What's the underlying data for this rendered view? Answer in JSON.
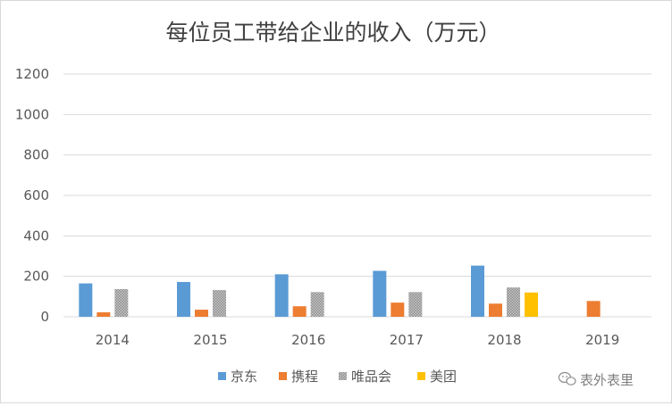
{
  "chart_data": {
    "type": "bar",
    "title": "每位员工带给企业的收入（万元）",
    "xlabel": "",
    "ylabel": "",
    "categories": [
      "2014",
      "2015",
      "2016",
      "2017",
      "2018",
      "2019"
    ],
    "yticks": [
      "0",
      "200",
      "400",
      "600",
      "800",
      "1000",
      "1200"
    ],
    "ylim": [
      0,
      1200
    ],
    "grid": true,
    "legend_position": "bottom",
    "series": [
      {
        "name": "京东",
        "color": "#5b9bd5",
        "values": [
          165,
          172,
          210,
          227,
          253,
          null
        ]
      },
      {
        "name": "携程",
        "color": "#ed7d31",
        "values": [
          22,
          35,
          52,
          70,
          65,
          78
        ]
      },
      {
        "name": "唯品会",
        "color": "#a5a5a5",
        "pattern": true,
        "values": [
          137,
          132,
          122,
          122,
          145,
          null
        ]
      },
      {
        "name": "美团",
        "color": "#ffc000",
        "values": [
          null,
          null,
          null,
          null,
          120,
          null
        ]
      }
    ]
  },
  "watermark": {
    "text": "表外表里",
    "icon": "wechat-icon"
  }
}
